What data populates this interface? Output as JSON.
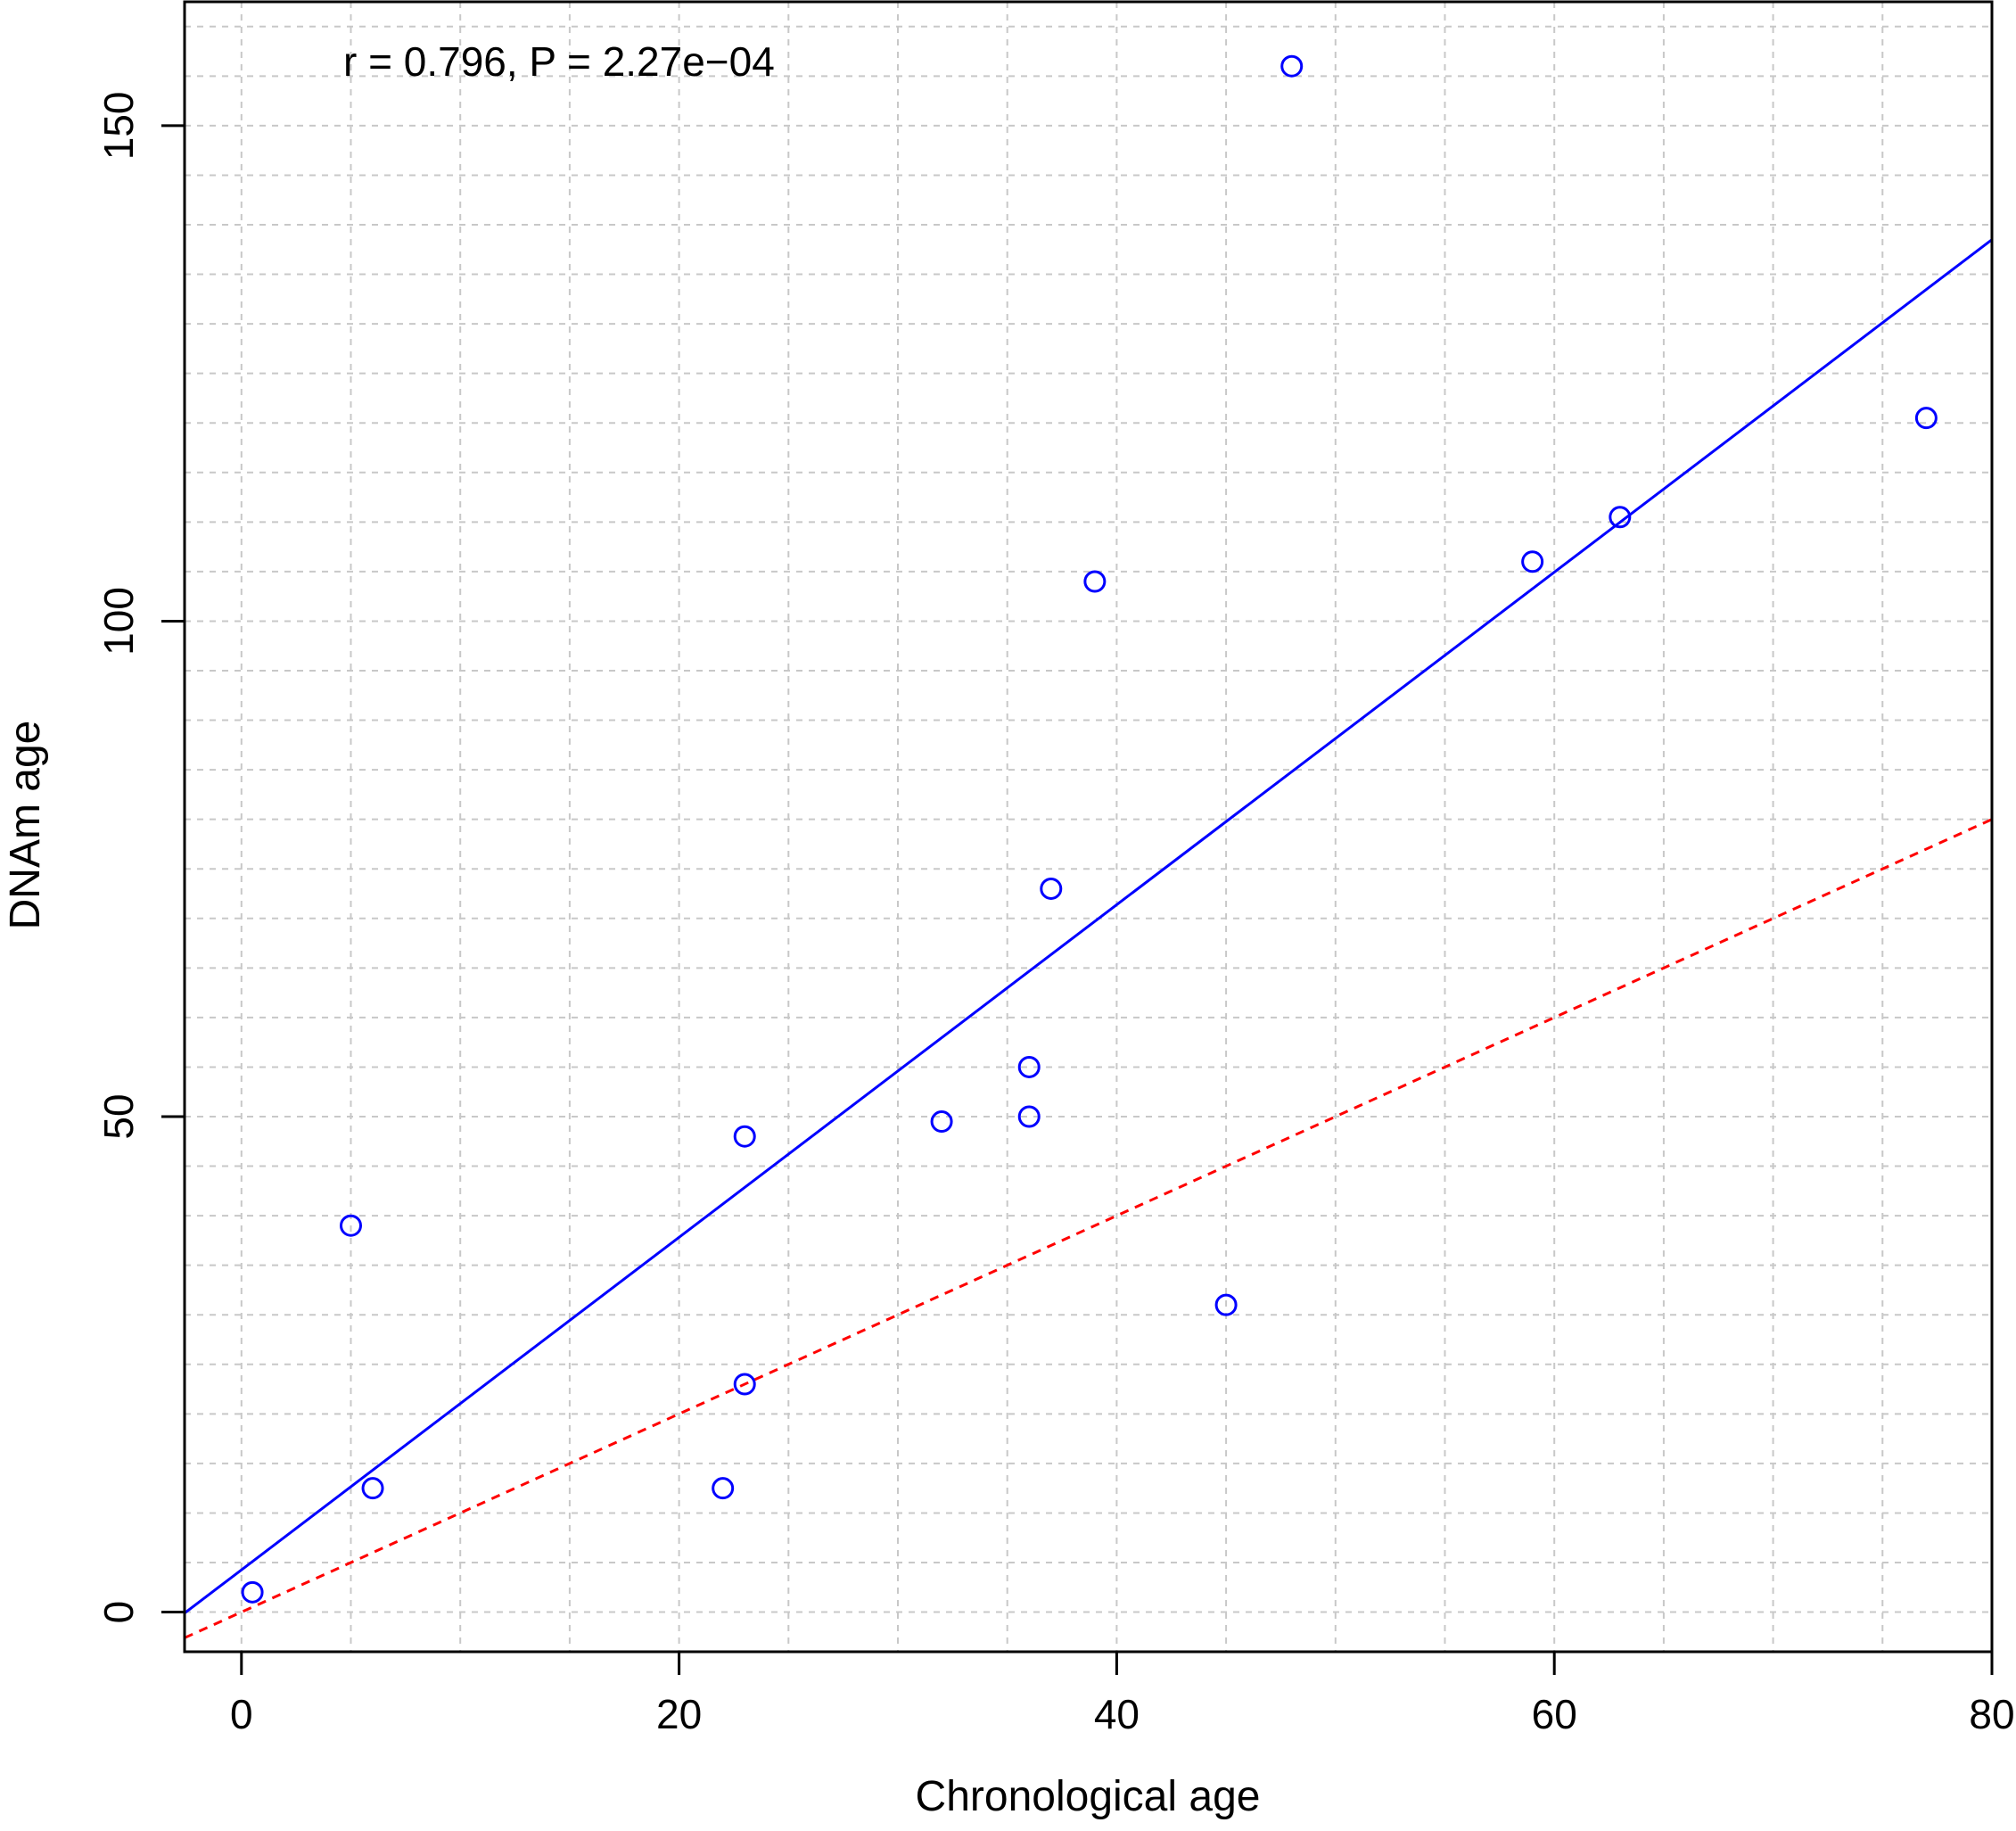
{
  "chart_data": {
    "type": "scatter",
    "title": "",
    "xlabel": "Chronological age",
    "ylabel": "DNAm age",
    "xlim": [
      -2.6,
      80
    ],
    "ylim": [
      -4,
      162.5
    ],
    "xticks": [
      0,
      20,
      40,
      60,
      80
    ],
    "yticks": [
      0,
      50,
      100,
      150
    ],
    "grid": true,
    "minor_grid_x_step": 5,
    "minor_grid_y_step": 5,
    "annotation": "r = 0.796, P = 2.27e−04",
    "series": [
      {
        "marker": "open-circle",
        "color": "#0000ff",
        "points": [
          {
            "x": 0.5,
            "y": 2
          },
          {
            "x": 5,
            "y": 39
          },
          {
            "x": 6,
            "y": 12.5
          },
          {
            "x": 22,
            "y": 12.5
          },
          {
            "x": 23,
            "y": 48
          },
          {
            "x": 23,
            "y": 23
          },
          {
            "x": 32,
            "y": 49.5
          },
          {
            "x": 36,
            "y": 55
          },
          {
            "x": 36,
            "y": 50
          },
          {
            "x": 37,
            "y": 73
          },
          {
            "x": 39,
            "y": 104
          },
          {
            "x": 45,
            "y": 31
          },
          {
            "x": 48,
            "y": 156
          },
          {
            "x": 59,
            "y": 106
          },
          {
            "x": 63,
            "y": 110.5
          },
          {
            "x": 77,
            "y": 120.5
          }
        ]
      }
    ],
    "lines": [
      {
        "kind": "regression",
        "style": "solid",
        "color": "#0000ff",
        "x": [
          -2.6,
          80
        ],
        "y": [
          -0.1,
          138.5
        ]
      },
      {
        "kind": "identity",
        "style": "dashed",
        "color": "#ff0000",
        "x": [
          -2.6,
          80
        ],
        "y": [
          -2.6,
          80
        ]
      }
    ]
  },
  "colors": {
    "axis": "#000000",
    "grid": "#c8c8c8",
    "points": "#0000ff",
    "regression": "#0000ff",
    "identity": "#ff0000"
  }
}
